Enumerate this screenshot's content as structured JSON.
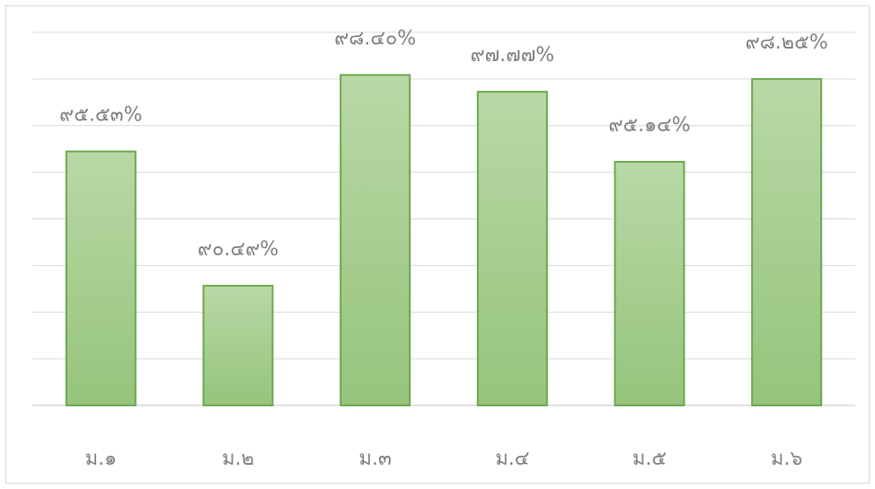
{
  "chart_data": {
    "type": "bar",
    "categories": [
      "ม.๑",
      "ม.๒",
      "ม.๓",
      "ม.๔",
      "ม.๕",
      "ม.๖"
    ],
    "values": [
      95.53,
      90.49,
      98.4,
      97.77,
      95.14,
      98.25
    ],
    "data_labels": [
      "๙๕.๕๓%",
      "๙๐.๔๙%",
      "๙๘.๔๐%",
      "๙๗.๗๗%",
      "๙๕.๑๔%",
      "๙๘.๒๕%"
    ],
    "ylim": [
      86,
      100
    ],
    "grid": true,
    "bar_color_top": "#b9d8a6",
    "bar_color_bottom": "#96c47c",
    "bar_border": "#6aa84f",
    "gridline_color": "#d9d9d9",
    "text_color": "#7f7f7f"
  }
}
